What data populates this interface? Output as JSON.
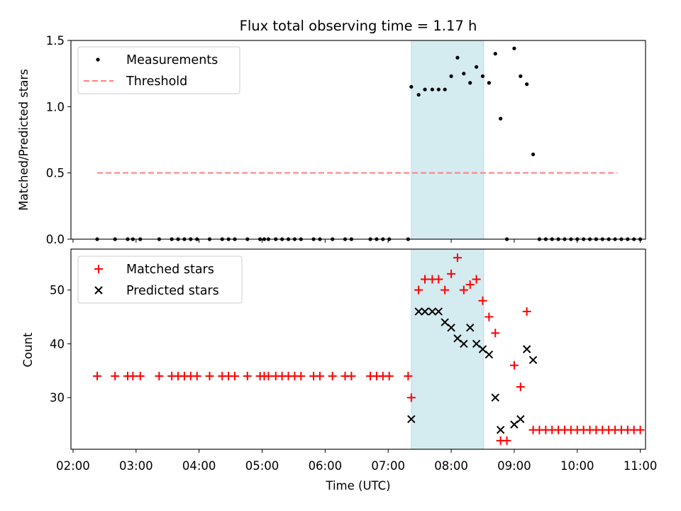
{
  "chart_data": [
    {
      "type": "scatter",
      "title": "Flux total observing time = 1.17 h",
      "xlabel": "",
      "ylabel": "Matched/Predicted stars",
      "xlim": [
        "01:58",
        "11:05"
      ],
      "ylim": [
        0,
        1.5
      ],
      "yticks": [
        "0.0",
        "0.5",
        "1.0",
        "1.5"
      ],
      "legend": "top-left",
      "grid": false,
      "highlight_span": {
        "from": "07:22",
        "to": "08:31",
        "color": "#d4ebf0"
      },
      "series": [
        {
          "name": "Measurements",
          "marker": "dot",
          "color": "#000000",
          "points": [
            [
              "02:23",
              0
            ],
            [
              "02:40",
              0
            ],
            [
              "02:52",
              0
            ],
            [
              "02:57",
              0
            ],
            [
              "03:04",
              0
            ],
            [
              "03:22",
              0
            ],
            [
              "03:34",
              0
            ],
            [
              "03:40",
              0
            ],
            [
              "03:46",
              0
            ],
            [
              "03:52",
              0
            ],
            [
              "03:58",
              0
            ],
            [
              "04:10",
              0
            ],
            [
              "04:22",
              0
            ],
            [
              "04:28",
              0
            ],
            [
              "04:34",
              0
            ],
            [
              "04:46",
              0
            ],
            [
              "04:58",
              0
            ],
            [
              "05:02",
              0
            ],
            [
              "05:06",
              0
            ],
            [
              "05:13",
              0
            ],
            [
              "05:19",
              0
            ],
            [
              "05:25",
              0
            ],
            [
              "05:31",
              0
            ],
            [
              "05:37",
              0
            ],
            [
              "05:49",
              0
            ],
            [
              "05:55",
              0
            ],
            [
              "06:07",
              0
            ],
            [
              "06:19",
              0
            ],
            [
              "06:25",
              0
            ],
            [
              "06:43",
              0
            ],
            [
              "06:49",
              0
            ],
            [
              "06:55",
              0
            ],
            [
              "07:01",
              0
            ],
            [
              "07:19",
              0
            ],
            [
              "07:22",
              1.15
            ],
            [
              "07:29",
              1.09
            ],
            [
              "07:35",
              1.13
            ],
            [
              "07:42",
              1.13
            ],
            [
              "07:48",
              1.13
            ],
            [
              "07:54",
              1.13
            ],
            [
              "08:00",
              1.23
            ],
            [
              "08:06",
              1.37
            ],
            [
              "08:12",
              1.25
            ],
            [
              "08:18",
              1.18
            ],
            [
              "08:24",
              1.3
            ],
            [
              "08:30",
              1.23
            ],
            [
              "08:36",
              1.18
            ],
            [
              "08:42",
              1.4
            ],
            [
              "08:47",
              0.91
            ],
            [
              "08:53",
              0
            ],
            [
              "09:00",
              1.44
            ],
            [
              "09:06",
              1.23
            ],
            [
              "09:12",
              1.17
            ],
            [
              "09:18",
              0.64
            ],
            [
              "09:24",
              0
            ],
            [
              "09:30",
              0
            ],
            [
              "09:36",
              0
            ],
            [
              "09:42",
              0
            ],
            [
              "09:48",
              0
            ],
            [
              "09:54",
              0
            ],
            [
              "10:00",
              0
            ],
            [
              "10:06",
              0
            ],
            [
              "10:12",
              0
            ],
            [
              "10:18",
              0
            ],
            [
              "10:24",
              0
            ],
            [
              "10:30",
              0
            ],
            [
              "10:36",
              0
            ],
            [
              "10:42",
              0
            ],
            [
              "10:48",
              0
            ],
            [
              "10:54",
              0
            ],
            [
              "11:00",
              0
            ]
          ]
        },
        {
          "name": "Threshold",
          "marker": "dashed-line",
          "color": "#ff7f7f",
          "points": [
            [
              "02:23",
              0.5
            ],
            [
              "10:38",
              0.5
            ]
          ]
        }
      ]
    },
    {
      "type": "scatter",
      "title": "",
      "xlabel": "Time (UTC)",
      "ylabel": "Count",
      "xlim": [
        "01:58",
        "11:05"
      ],
      "ylim": [
        20.4,
        57.6
      ],
      "yticks": [
        "30",
        "40",
        "50"
      ],
      "xticks": [
        "02:00",
        "03:00",
        "04:00",
        "05:00",
        "06:00",
        "07:00",
        "08:00",
        "09:00",
        "10:00",
        "11:00"
      ],
      "legend": "top-left",
      "grid": false,
      "highlight_span": {
        "from": "07:22",
        "to": "08:31",
        "color": "#d4ebf0"
      },
      "series": [
        {
          "name": "Matched stars",
          "marker": "plus",
          "color": "#ff0000",
          "points": [
            [
              "02:23",
              34
            ],
            [
              "02:40",
              34
            ],
            [
              "02:52",
              34
            ],
            [
              "02:57",
              34
            ],
            [
              "03:04",
              34
            ],
            [
              "03:22",
              34
            ],
            [
              "03:34",
              34
            ],
            [
              "03:40",
              34
            ],
            [
              "03:46",
              34
            ],
            [
              "03:52",
              34
            ],
            [
              "03:58",
              34
            ],
            [
              "04:10",
              34
            ],
            [
              "04:22",
              34
            ],
            [
              "04:28",
              34
            ],
            [
              "04:34",
              34
            ],
            [
              "04:46",
              34
            ],
            [
              "04:58",
              34
            ],
            [
              "05:02",
              34
            ],
            [
              "05:06",
              34
            ],
            [
              "05:13",
              34
            ],
            [
              "05:19",
              34
            ],
            [
              "05:25",
              34
            ],
            [
              "05:31",
              34
            ],
            [
              "05:37",
              34
            ],
            [
              "05:49",
              34
            ],
            [
              "05:55",
              34
            ],
            [
              "06:07",
              34
            ],
            [
              "06:19",
              34
            ],
            [
              "06:25",
              34
            ],
            [
              "06:43",
              34
            ],
            [
              "06:49",
              34
            ],
            [
              "06:55",
              34
            ],
            [
              "07:01",
              34
            ],
            [
              "07:19",
              34
            ],
            [
              "07:22",
              30
            ],
            [
              "07:29",
              50
            ],
            [
              "07:35",
              52
            ],
            [
              "07:42",
              52
            ],
            [
              "07:48",
              52
            ],
            [
              "07:54",
              50
            ],
            [
              "08:00",
              53
            ],
            [
              "08:06",
              56
            ],
            [
              "08:12",
              50
            ],
            [
              "08:18",
              51
            ],
            [
              "08:24",
              52
            ],
            [
              "08:30",
              48
            ],
            [
              "08:36",
              45
            ],
            [
              "08:42",
              42
            ],
            [
              "08:47",
              22
            ],
            [
              "08:53",
              22
            ],
            [
              "09:00",
              36
            ],
            [
              "09:06",
              32
            ],
            [
              "09:12",
              46
            ],
            [
              "09:18",
              24
            ],
            [
              "09:24",
              24
            ],
            [
              "09:30",
              24
            ],
            [
              "09:36",
              24
            ],
            [
              "09:42",
              24
            ],
            [
              "09:48",
              24
            ],
            [
              "09:54",
              24
            ],
            [
              "10:00",
              24
            ],
            [
              "10:06",
              24
            ],
            [
              "10:12",
              24
            ],
            [
              "10:18",
              24
            ],
            [
              "10:24",
              24
            ],
            [
              "10:30",
              24
            ],
            [
              "10:36",
              24
            ],
            [
              "10:42",
              24
            ],
            [
              "10:48",
              24
            ],
            [
              "10:54",
              24
            ],
            [
              "11:00",
              24
            ]
          ]
        },
        {
          "name": "Predicted stars",
          "marker": "x",
          "color": "#000000",
          "points": [
            [
              "07:22",
              26
            ],
            [
              "07:29",
              46
            ],
            [
              "07:35",
              46
            ],
            [
              "07:42",
              46
            ],
            [
              "07:48",
              46
            ],
            [
              "07:54",
              44
            ],
            [
              "08:00",
              43
            ],
            [
              "08:06",
              41
            ],
            [
              "08:12",
              40
            ],
            [
              "08:18",
              43
            ],
            [
              "08:24",
              40
            ],
            [
              "08:30",
              39
            ],
            [
              "08:36",
              38
            ],
            [
              "08:42",
              30
            ],
            [
              "08:47",
              24
            ],
            [
              "09:00",
              25
            ],
            [
              "09:06",
              26
            ],
            [
              "09:12",
              39
            ],
            [
              "09:18",
              37
            ]
          ]
        }
      ]
    }
  ]
}
